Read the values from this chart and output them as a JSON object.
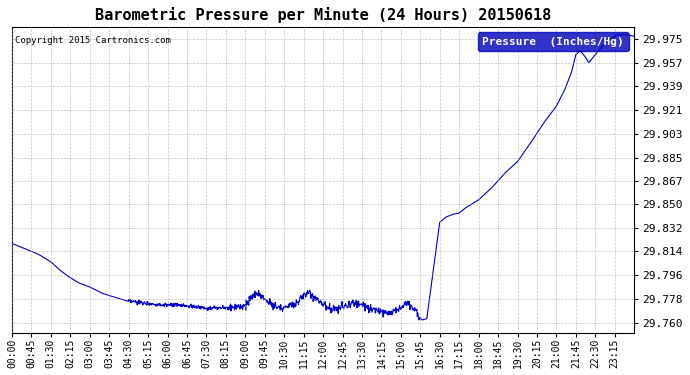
{
  "title": "Barometric Pressure per Minute (24 Hours) 20150618",
  "copyright": "Copyright 2015 Cartronics.com",
  "legend_label": "Pressure  (Inches/Hg)",
  "line_color": "#0000cc",
  "background_color": "#ffffff",
  "grid_color": "#aaaaaa",
  "yticks": [
    29.76,
    29.778,
    29.796,
    29.814,
    29.832,
    29.85,
    29.867,
    29.885,
    29.903,
    29.921,
    29.939,
    29.957,
    29.975
  ],
  "ymin": 29.752,
  "ymax": 29.984,
  "x_tick_labels": [
    "00:00",
    "00:45",
    "01:30",
    "02:15",
    "03:00",
    "03:45",
    "04:30",
    "05:15",
    "06:00",
    "06:45",
    "07:30",
    "08:15",
    "09:00",
    "09:45",
    "10:30",
    "11:15",
    "12:00",
    "12:45",
    "13:30",
    "14:15",
    "15:00",
    "15:45",
    "16:30",
    "17:15",
    "18:00",
    "18:45",
    "19:30",
    "20:15",
    "21:00",
    "21:45",
    "22:30",
    "23:15"
  ],
  "font_family": "monospace",
  "title_fontsize": 11,
  "tick_fontsize": 8,
  "xtick_fontsize": 7
}
